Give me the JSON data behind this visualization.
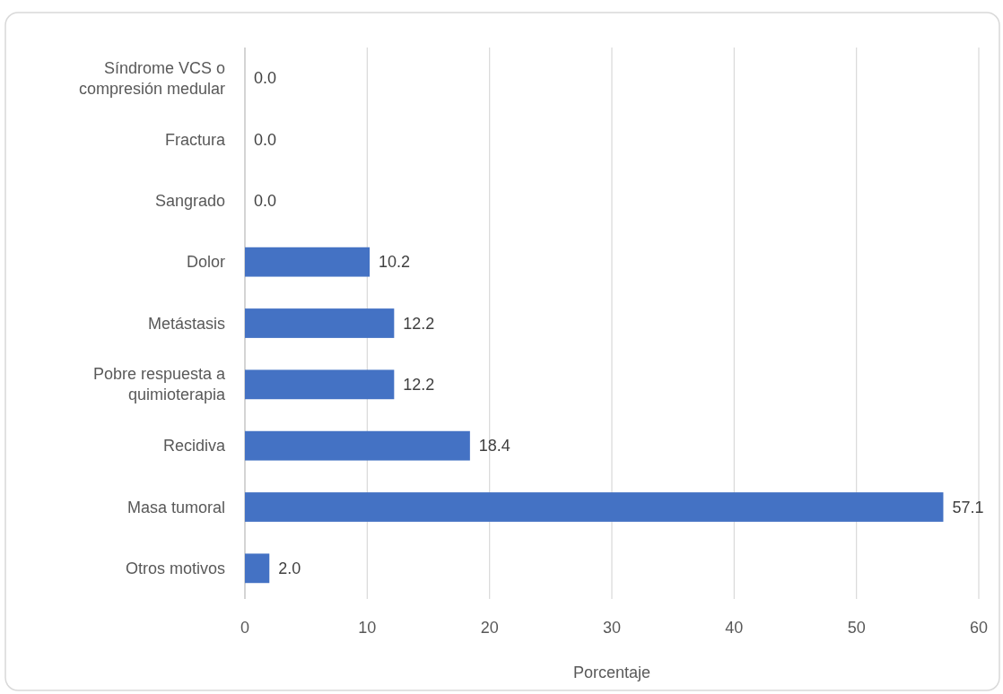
{
  "chart_data": {
    "type": "bar",
    "orientation": "horizontal",
    "xlabel": "Porcentaje",
    "categories": [
      "Síndrome VCS o compresión medular",
      "Fractura",
      "Sangrado",
      "Dolor",
      "Metástasis",
      "Pobre respuesta a quimioterapia",
      "Recidiva",
      "Masa tumoral",
      "Otros motivos"
    ],
    "values": [
      0,
      0,
      0,
      10.2,
      12.2,
      12.2,
      18.4,
      57.1,
      2.0
    ],
    "value_labels": [
      "0.0",
      "0.0",
      "0.0",
      "10.2",
      "12.2",
      "12.2",
      "18.4",
      "57.1",
      "2.0"
    ],
    "color": "#4472c4",
    "xlim": [
      0,
      60
    ],
    "xticks": [
      0,
      10,
      20,
      30,
      40,
      50,
      60
    ],
    "grid": "x"
  }
}
